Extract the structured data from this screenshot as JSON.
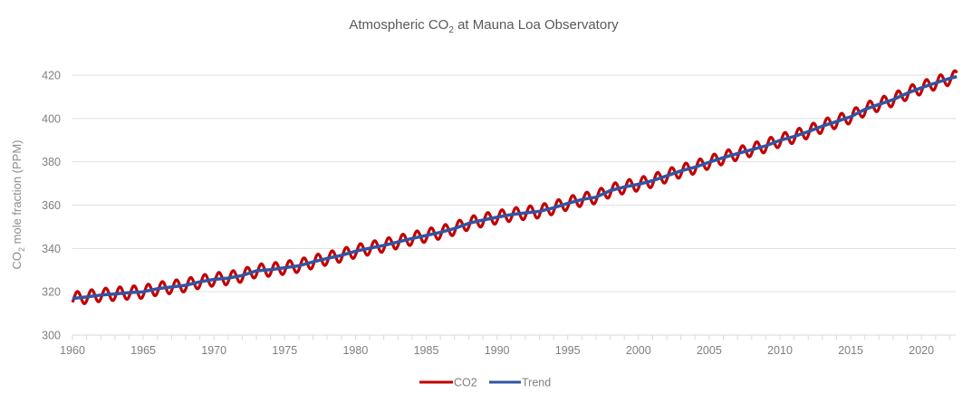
{
  "chart_data": {
    "type": "line",
    "title": "Atmospheric CO",
    "title_sub": "2",
    "title_rest": " at Mauna Loa Observatory",
    "xlabel": "",
    "ylabel": "CO",
    "ylabel_sub": "2",
    "ylabel_rest": " mole fraction (PPM)",
    "xlim": [
      1960,
      2022.5
    ],
    "ylim": [
      300,
      425
    ],
    "xticks": [
      1960,
      1965,
      1970,
      1975,
      1980,
      1985,
      1990,
      1995,
      2000,
      2005,
      2010,
      2015,
      2020
    ],
    "xtick_labels": [
      "1960",
      "1965",
      "1970",
      "1975",
      "1980",
      "1985",
      "1990",
      "1995",
      "2000",
      "2005",
      "2010",
      "2015",
      "2020"
    ],
    "yticks": [
      300,
      320,
      340,
      360,
      380,
      400,
      420
    ],
    "ytick_labels": [
      "300",
      "320",
      "340",
      "360",
      "380",
      "400",
      "420"
    ],
    "grid": true,
    "legend_position": "bottom-center",
    "seasonal_amplitude_ppm": 3,
    "series": [
      {
        "name": "CO2",
        "color": "#c00000",
        "description": "monthly mean, trend plus seasonal cycle"
      },
      {
        "name": "Trend",
        "color": "#2f55a4",
        "x": [
          1960,
          1961,
          1962,
          1963,
          1964,
          1965,
          1966,
          1967,
          1968,
          1969,
          1970,
          1971,
          1972,
          1973,
          1974,
          1975,
          1976,
          1977,
          1978,
          1979,
          1980,
          1981,
          1982,
          1983,
          1984,
          1985,
          1986,
          1987,
          1988,
          1989,
          1990,
          1991,
          1992,
          1993,
          1994,
          1995,
          1996,
          1997,
          1998,
          1999,
          2000,
          2001,
          2002,
          2003,
          2004,
          2005,
          2006,
          2007,
          2008,
          2009,
          2010,
          2011,
          2012,
          2013,
          2014,
          2015,
          2016,
          2017,
          2018,
          2019,
          2020,
          2021,
          2022,
          2022.5
        ],
        "values": [
          316.9,
          317.6,
          318.5,
          319.0,
          319.6,
          320.0,
          321.4,
          322.2,
          323.0,
          324.6,
          325.7,
          326.3,
          327.5,
          329.7,
          330.2,
          331.1,
          332.0,
          333.8,
          335.4,
          336.8,
          338.7,
          340.1,
          341.4,
          343.0,
          344.6,
          346.0,
          347.4,
          349.2,
          351.6,
          353.1,
          354.4,
          355.6,
          356.4,
          357.1,
          358.8,
          360.8,
          362.6,
          363.7,
          366.7,
          368.4,
          369.6,
          371.3,
          373.5,
          375.8,
          377.5,
          379.8,
          381.9,
          383.8,
          385.6,
          387.4,
          389.9,
          391.7,
          393.9,
          396.5,
          398.6,
          400.8,
          404.2,
          406.5,
          408.7,
          411.7,
          414.2,
          416.4,
          418.5,
          419.3
        ]
      }
    ]
  }
}
